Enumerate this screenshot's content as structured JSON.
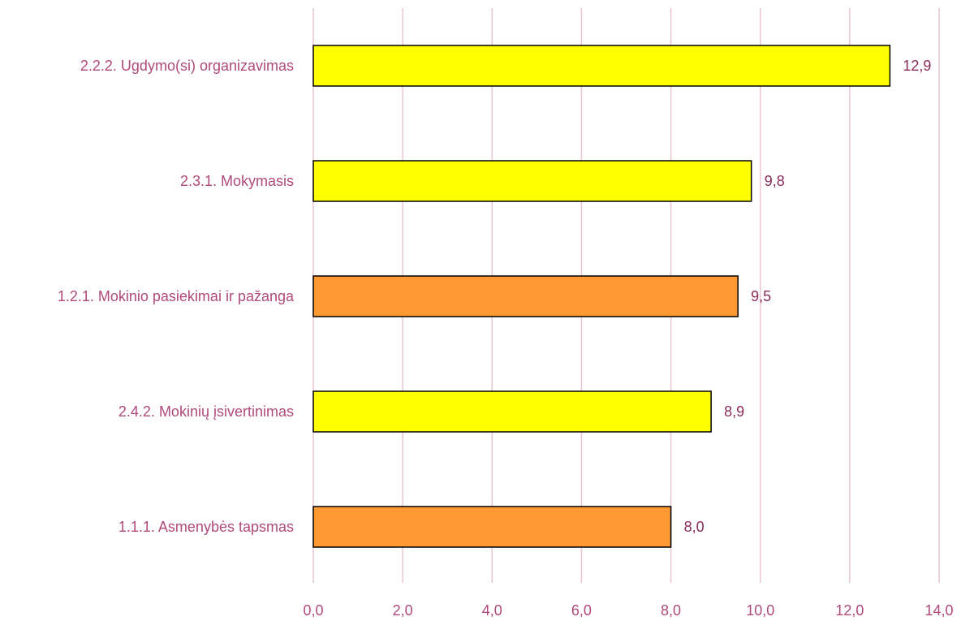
{
  "chart_data": {
    "type": "bar",
    "orientation": "horizontal",
    "categories": [
      "2.2.2. Ugdymo(si) organizavimas",
      "2.3.1. Mokymasis",
      "1.2.1. Mokinio pasiekimai ir pažanga",
      "2.4.2. Mokinių įsivertinimas",
      "1.1.1. Asmenybės tapsmas"
    ],
    "values": [
      12.9,
      9.8,
      9.5,
      8.9,
      8.0
    ],
    "value_labels": [
      "12,9",
      "9,8",
      "9,5",
      "8,9",
      "8,0"
    ],
    "bar_colors": [
      "#ffff00",
      "#ffff00",
      "#ff9a33",
      "#ffff00",
      "#ff9a33"
    ],
    "xlim": [
      0,
      14
    ],
    "x_ticks": [
      0,
      2,
      4,
      6,
      8,
      10,
      12,
      14
    ],
    "x_tick_labels": [
      "0,0",
      "2,0",
      "4,0",
      "6,0",
      "8,0",
      "10,0",
      "12,0",
      "14,0"
    ],
    "grid": true,
    "grid_color": "#e9c6d1",
    "label_color": "#b04a7b",
    "value_label_color": "#8a2d5c",
    "title": "",
    "xlabel": "",
    "ylabel": "",
    "legend": "none"
  }
}
